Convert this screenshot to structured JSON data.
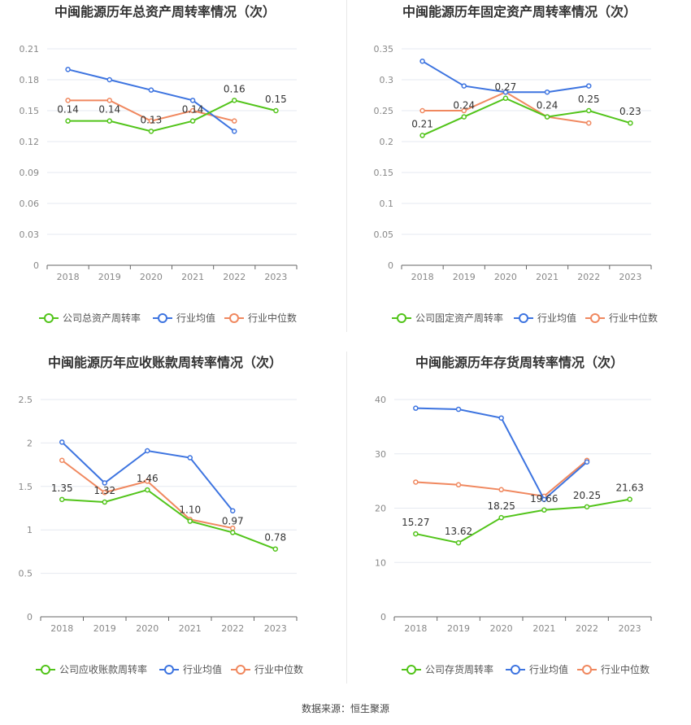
{
  "source": "数据来源：恒生聚源",
  "legend_labels": {
    "industry_avg": "行业均值",
    "industry_median": "行业中位数"
  },
  "colors": {
    "company": "#52c41a",
    "avg": "#3d74e0",
    "median": "#f0885f"
  },
  "chart_data": [
    {
      "type": "line",
      "title": "中闽能源历年总资产周转率情况（次）",
      "categories": [
        "2018",
        "2019",
        "2020",
        "2021",
        "2022",
        "2023"
      ],
      "ylim": [
        0,
        0.21
      ],
      "yticks": [
        "0",
        "0.03",
        "0.06",
        "0.09",
        "0.12",
        "0.15",
        "0.18",
        "0.21"
      ],
      "series": [
        {
          "key": "company",
          "name": "公司总资产周转率",
          "values": [
            0.14,
            0.14,
            0.13,
            0.14,
            0.16,
            0.15
          ],
          "labels": [
            "0.14",
            "0.14",
            "0.13",
            "0.14",
            "0.16",
            "0.15"
          ]
        },
        {
          "key": "avg",
          "name": "行业均值",
          "values": [
            0.19,
            0.18,
            0.17,
            0.16,
            0.13,
            null
          ]
        },
        {
          "key": "median",
          "name": "行业中位数",
          "values": [
            0.16,
            0.16,
            0.14,
            0.15,
            0.14,
            null
          ]
        }
      ]
    },
    {
      "type": "line",
      "title": "中闽能源历年固定资产周转率情况（次）",
      "categories": [
        "2018",
        "2019",
        "2020",
        "2021",
        "2022",
        "2023"
      ],
      "ylim": [
        0,
        0.35
      ],
      "yticks": [
        "0",
        "0.05",
        "0.1",
        "0.15",
        "0.2",
        "0.25",
        "0.3",
        "0.35"
      ],
      "series": [
        {
          "key": "company",
          "name": "公司固定资产周转率",
          "values": [
            0.21,
            0.24,
            0.27,
            0.24,
            0.25,
            0.23
          ],
          "labels": [
            "0.21",
            "0.24",
            "0.27",
            "0.24",
            "0.25",
            "0.23"
          ]
        },
        {
          "key": "avg",
          "name": "行业均值",
          "values": [
            0.33,
            0.29,
            0.28,
            0.28,
            0.29,
            null
          ]
        },
        {
          "key": "median",
          "name": "行业中位数",
          "values": [
            0.25,
            0.25,
            0.28,
            0.24,
            0.23,
            null
          ]
        }
      ]
    },
    {
      "type": "line",
      "title": "中闽能源历年应收账款周转率情况（次）",
      "categories": [
        "2018",
        "2019",
        "2020",
        "2021",
        "2022",
        "2023"
      ],
      "ylim": [
        0,
        2.5
      ],
      "yticks": [
        "0",
        "0.5",
        "1",
        "1.5",
        "2",
        "2.5"
      ],
      "series": [
        {
          "key": "company",
          "name": "公司应收账款周转率",
          "values": [
            1.35,
            1.32,
            1.46,
            1.1,
            0.97,
            0.78
          ],
          "labels": [
            "1.35",
            "1.32",
            "1.46",
            "1.10",
            "0.97",
            "0.78"
          ]
        },
        {
          "key": "avg",
          "name": "行业均值",
          "values": [
            2.01,
            1.54,
            1.91,
            1.83,
            1.22,
            null
          ]
        },
        {
          "key": "median",
          "name": "行业中位数",
          "values": [
            1.8,
            1.43,
            1.56,
            1.12,
            1.02,
            null
          ]
        }
      ]
    },
    {
      "type": "line",
      "title": "中闽能源历年存货周转率情况（次）",
      "categories": [
        "2018",
        "2019",
        "2020",
        "2021",
        "2022",
        "2023"
      ],
      "ylim": [
        0,
        40
      ],
      "yticks": [
        "0",
        "10",
        "20",
        "30",
        "40"
      ],
      "series": [
        {
          "key": "company",
          "name": "公司存货周转率",
          "values": [
            15.27,
            13.62,
            18.25,
            19.66,
            20.25,
            21.63
          ],
          "labels": [
            "15.27",
            "13.62",
            "18.25",
            "19.66",
            "20.25",
            "21.63"
          ]
        },
        {
          "key": "avg",
          "name": "行业均值",
          "values": [
            38.4,
            38.2,
            36.6,
            21.6,
            28.5,
            null
          ]
        },
        {
          "key": "median",
          "name": "行业中位数",
          "values": [
            24.8,
            24.3,
            23.4,
            22.2,
            28.8,
            null
          ]
        }
      ]
    }
  ]
}
